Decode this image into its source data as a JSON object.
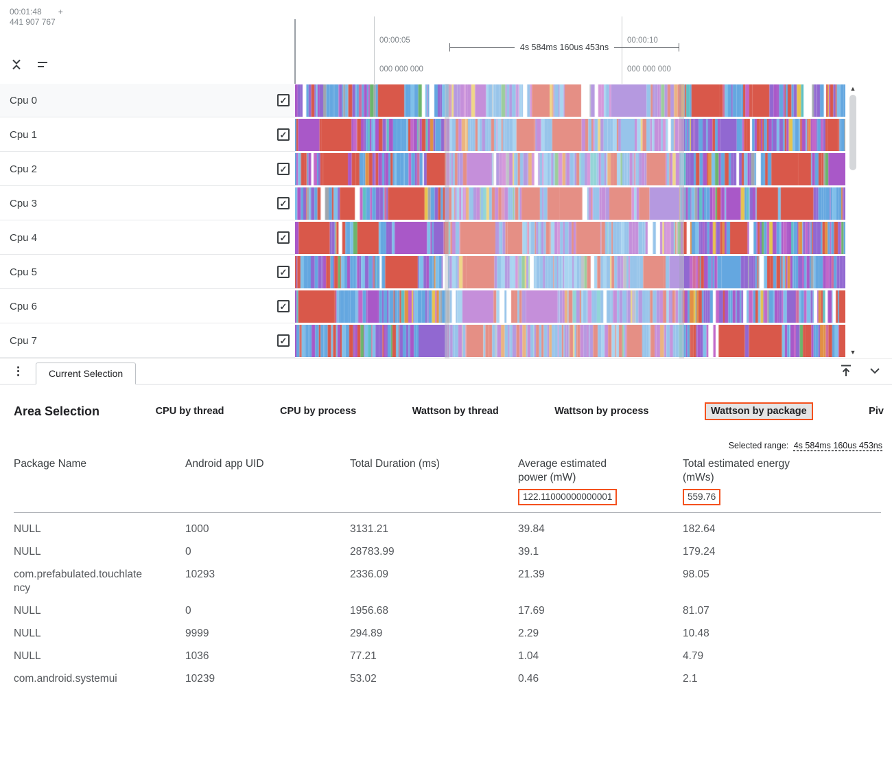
{
  "timeline": {
    "origin_time": "00:01:48",
    "origin_plus": "+",
    "origin_ns": "441 907 767",
    "markers": [
      {
        "time": "00:00:05",
        "ns": "000 000 000"
      },
      {
        "time": "00:00:10",
        "ns": "000 000 000"
      }
    ],
    "selection_duration": "4s 584ms 160us 453ns"
  },
  "tracks": [
    {
      "label": "Cpu 0"
    },
    {
      "label": "Cpu 1"
    },
    {
      "label": "Cpu 2"
    },
    {
      "label": "Cpu 3"
    },
    {
      "label": "Cpu 4"
    },
    {
      "label": "Cpu 5"
    },
    {
      "label": "Cpu 6"
    },
    {
      "label": "Cpu 7"
    }
  ],
  "icons": {
    "more_vert": "⋮",
    "check": "✓",
    "scroll_up": "▲",
    "scroll_down": "▼"
  },
  "colors": {
    "accent": "#f4511e"
  },
  "track_palette": [
    {
      "color": "#64a7e0",
      "weight": 30,
      "family": "blue"
    },
    {
      "color": "#7fc0ea",
      "weight": 10,
      "family": "blue"
    },
    {
      "color": "#9168d1",
      "weight": 16,
      "family": "purple"
    },
    {
      "color": "#a958c8",
      "weight": 13,
      "family": "violet"
    },
    {
      "color": "#c267c9",
      "weight": 5,
      "family": "magenta"
    },
    {
      "color": "#d9584a",
      "weight": 10,
      "family": "red"
    },
    {
      "color": "#e29044",
      "weight": 3,
      "family": "orange"
    },
    {
      "color": "#e7c44f",
      "weight": 2,
      "family": "yellow"
    },
    {
      "color": "#6cb56c",
      "weight": 2,
      "family": "green"
    },
    {
      "color": "#5ec0c4",
      "weight": 2,
      "family": "teal"
    },
    {
      "color": "#a0a6ad",
      "weight": 2,
      "family": "gray"
    },
    {
      "color": "#cf6d9e",
      "weight": 2,
      "family": "pink"
    }
  ],
  "tabbar": {
    "current_tab": "Current Selection"
  },
  "panel": {
    "title": "Area Selection",
    "tabs": [
      {
        "label": "CPU by thread"
      },
      {
        "label": "CPU by process"
      },
      {
        "label": "Wattson by thread"
      },
      {
        "label": "Wattson by process"
      },
      {
        "label": "Wattson by package",
        "active": true
      },
      {
        "label": "Piv"
      }
    ],
    "selected_range_label": "Selected range:",
    "selected_range_value": "4s 584ms 160us 453ns",
    "table": {
      "columns": [
        "Package Name",
        "Android app UID",
        "Total Duration (ms)",
        "Average estimated power (mW)",
        "Total estimated energy (mWs)"
      ],
      "total_power": "122.11000000000001",
      "total_energy": "559.76",
      "rows": [
        [
          "NULL",
          "1000",
          "3131.21",
          "39.84",
          "182.64"
        ],
        [
          "NULL",
          "0",
          "28783.99",
          "39.1",
          "179.24"
        ],
        [
          "com.prefabulated.touchlatency",
          "10293",
          "2336.09",
          "21.39",
          "98.05"
        ],
        [
          "NULL",
          "0",
          "1956.68",
          "17.69",
          "81.07"
        ],
        [
          "NULL",
          "9999",
          "294.89",
          "2.29",
          "10.48"
        ],
        [
          "NULL",
          "1036",
          "77.21",
          "1.04",
          "4.79"
        ],
        [
          "com.android.systemui",
          "10239",
          "53.02",
          "0.46",
          "2.1"
        ]
      ]
    }
  }
}
